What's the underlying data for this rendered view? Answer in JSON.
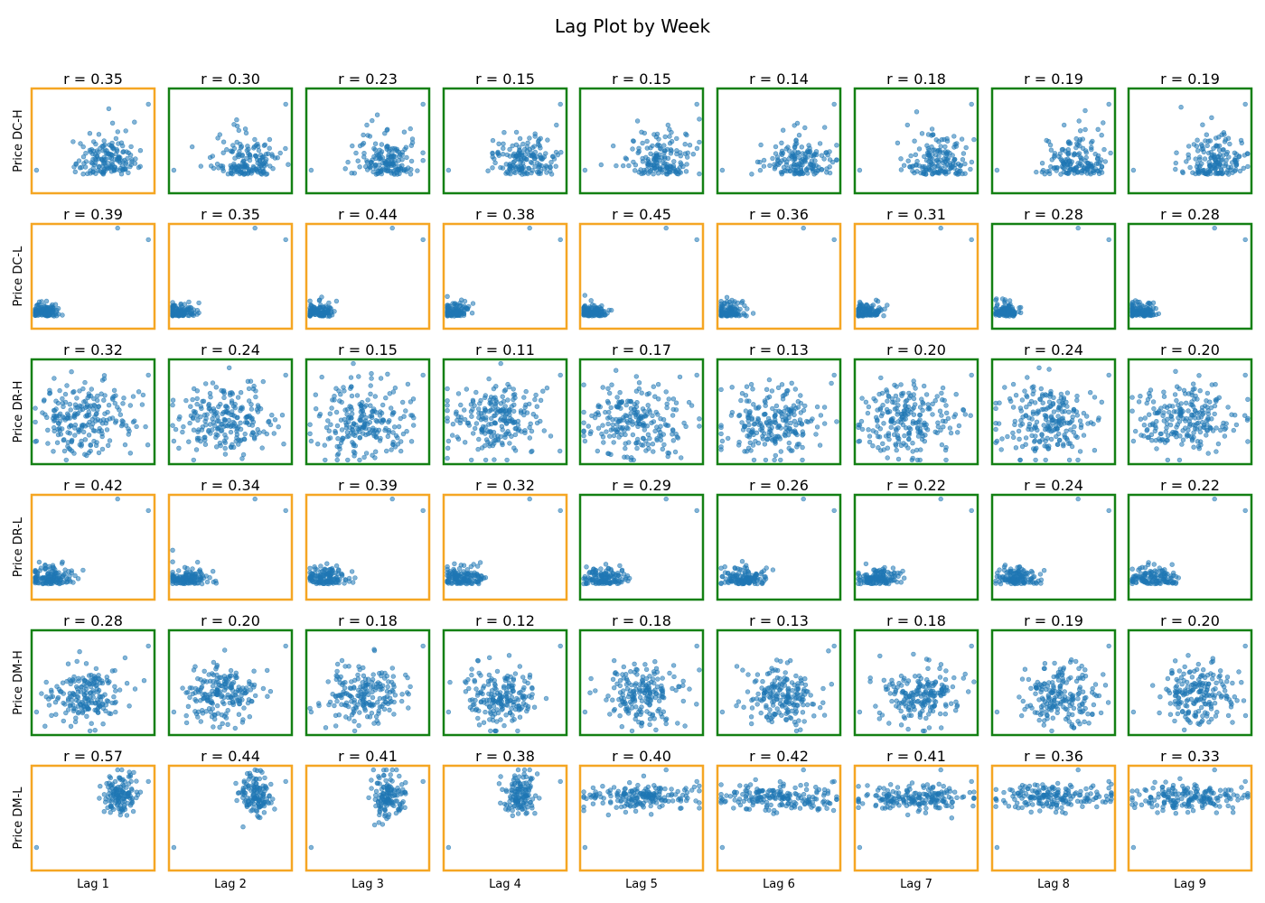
{
  "chart_data": {
    "type": "scatter",
    "title": "Lag Plot by Week",
    "layout": "grid-6x9",
    "rows": [
      "Price DC-H",
      "Price DC-L",
      "Price DR-H",
      "Price DR-L",
      "Price DM-H",
      "Price DM-L"
    ],
    "cols": [
      "Lag 1",
      "Lag 2",
      "Lag 3",
      "Lag 4",
      "Lag 5",
      "Lag 6",
      "Lag 7",
      "Lag 8",
      "Lag 9"
    ],
    "r_labels": [
      [
        "r = 0.35",
        "r = 0.30",
        "r = 0.23",
        "r = 0.15",
        "r = 0.15",
        "r = 0.14",
        "r = 0.18",
        "r = 0.19",
        "r = 0.19"
      ],
      [
        "r = 0.39",
        "r = 0.35",
        "r = 0.44",
        "r = 0.38",
        "r = 0.45",
        "r = 0.36",
        "r = 0.31",
        "r = 0.28",
        "r = 0.28"
      ],
      [
        "r = 0.32",
        "r = 0.24",
        "r = 0.15",
        "r = 0.11",
        "r = 0.17",
        "r = 0.13",
        "r = 0.20",
        "r = 0.24",
        "r = 0.20"
      ],
      [
        "r = 0.42",
        "r = 0.34",
        "r = 0.39",
        "r = 0.32",
        "r = 0.29",
        "r = 0.26",
        "r = 0.22",
        "r = 0.24",
        "r = 0.22"
      ],
      [
        "r = 0.28",
        "r = 0.20",
        "r = 0.18",
        "r = 0.12",
        "r = 0.18",
        "r = 0.13",
        "r = 0.18",
        "r = 0.19",
        "r = 0.20"
      ],
      [
        "r = 0.57",
        "r = 0.44",
        "r = 0.41",
        "r = 0.38",
        "r = 0.40",
        "r = 0.42",
        "r = 0.41",
        "r = 0.36",
        "r = 0.33"
      ]
    ],
    "r_values": [
      [
        0.35,
        0.3,
        0.23,
        0.15,
        0.15,
        0.14,
        0.18,
        0.19,
        0.19
      ],
      [
        0.39,
        0.35,
        0.44,
        0.38,
        0.45,
        0.36,
        0.31,
        0.28,
        0.28
      ],
      [
        0.32,
        0.24,
        0.15,
        0.11,
        0.17,
        0.13,
        0.2,
        0.24,
        0.2
      ],
      [
        0.42,
        0.34,
        0.39,
        0.32,
        0.29,
        0.26,
        0.22,
        0.24,
        0.22
      ],
      [
        0.28,
        0.2,
        0.18,
        0.12,
        0.18,
        0.13,
        0.18,
        0.19,
        0.2
      ],
      [
        0.57,
        0.44,
        0.41,
        0.38,
        0.4,
        0.42,
        0.41,
        0.36,
        0.33
      ]
    ],
    "frame_colors": [
      [
        "orange",
        "green",
        "green",
        "green",
        "green",
        "green",
        "green",
        "green",
        "green"
      ],
      [
        "orange",
        "orange",
        "orange",
        "orange",
        "orange",
        "orange",
        "orange",
        "green",
        "green"
      ],
      [
        "green",
        "green",
        "green",
        "green",
        "green",
        "green",
        "green",
        "green",
        "green"
      ],
      [
        "orange",
        "orange",
        "orange",
        "orange",
        "green",
        "green",
        "green",
        "green",
        "green"
      ],
      [
        "green",
        "green",
        "green",
        "green",
        "green",
        "green",
        "green",
        "green",
        "green"
      ],
      [
        "orange",
        "orange",
        "orange",
        "orange",
        "orange",
        "orange",
        "orange",
        "orange",
        "orange"
      ]
    ],
    "palette": {
      "point": "#1f77b4",
      "orange": "#f5a623",
      "green": "#138013"
    },
    "axes_visible": false,
    "grid": false
  }
}
